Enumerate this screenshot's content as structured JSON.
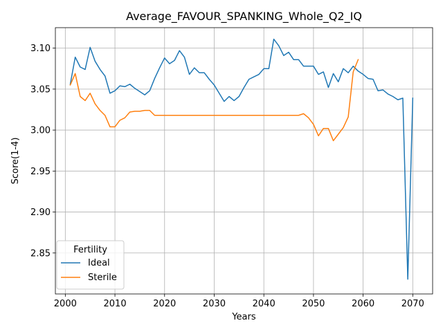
{
  "chart_data": {
    "type": "line",
    "title": "Average_FAVOUR_SPANKING_Whole_Q2_IQ",
    "xlabel": "Years",
    "ylabel": "Score(1-4)",
    "xlim": [
      1998,
      2074
    ],
    "ylim": [
      2.8,
      3.125
    ],
    "xticks": [
      2000,
      2010,
      2020,
      2030,
      2040,
      2050,
      2060,
      2070
    ],
    "yticks": [
      2.85,
      2.9,
      2.95,
      3.0,
      3.05,
      3.1
    ],
    "ytick_labels": [
      "2.85",
      "2.90",
      "2.95",
      "3.00",
      "3.05",
      "3.10"
    ],
    "grid": true,
    "legend": {
      "title": "Fertility",
      "position": "lower-left"
    },
    "series": [
      {
        "name": "Ideal",
        "color": "#1f77b4",
        "x": [
          2001,
          2002,
          2003,
          2004,
          2005,
          2006,
          2007,
          2008,
          2009,
          2010,
          2011,
          2012,
          2013,
          2014,
          2015,
          2016,
          2017,
          2018,
          2019,
          2020,
          2021,
          2022,
          2023,
          2024,
          2025,
          2026,
          2027,
          2028,
          2029,
          2030,
          2031,
          2032,
          2033,
          2034,
          2035,
          2036,
          2037,
          2038,
          2039,
          2040,
          2041,
          2042,
          2043,
          2044,
          2045,
          2046,
          2047,
          2048,
          2049,
          2050,
          2051,
          2052,
          2053,
          2054,
          2055,
          2056,
          2057,
          2058,
          2059,
          2060,
          2061,
          2062,
          2063,
          2064,
          2065,
          2066,
          2067,
          2068,
          2069,
          2070
        ],
        "y": [
          3.056,
          3.089,
          3.077,
          3.074,
          3.101,
          3.084,
          3.074,
          3.066,
          3.045,
          3.048,
          3.054,
          3.053,
          3.056,
          3.051,
          3.047,
          3.043,
          3.048,
          3.063,
          3.076,
          3.088,
          3.081,
          3.085,
          3.097,
          3.089,
          3.068,
          3.076,
          3.07,
          3.07,
          3.062,
          3.055,
          3.045,
          3.035,
          3.041,
          3.036,
          3.041,
          3.052,
          3.062,
          3.065,
          3.068,
          3.075,
          3.075,
          3.111,
          3.103,
          3.091,
          3.095,
          3.086,
          3.086,
          3.078,
          3.078,
          3.078,
          3.068,
          3.071,
          3.052,
          3.069,
          3.059,
          3.075,
          3.07,
          3.078,
          3.072,
          3.068,
          3.063,
          3.062,
          3.048,
          3.049,
          3.044,
          3.041,
          3.037,
          3.039,
          2.818,
          3.039
        ]
      },
      {
        "name": "Sterile",
        "color": "#ff7f0e",
        "x": [
          2001,
          2002,
          2003,
          2004,
          2005,
          2006,
          2007,
          2008,
          2009,
          2010,
          2011,
          2012,
          2013,
          2014,
          2015,
          2016,
          2017,
          2018,
          2019,
          2020,
          2021,
          2022,
          2023,
          2024,
          2025,
          2026,
          2027,
          2028,
          2029,
          2030,
          2031,
          2032,
          2033,
          2034,
          2035,
          2036,
          2037,
          2038,
          2039,
          2040,
          2041,
          2042,
          2043,
          2044,
          2045,
          2046,
          2047,
          2048,
          2049,
          2050,
          2051,
          2052,
          2053,
          2054,
          2055,
          2056,
          2057,
          2058,
          2059
        ],
        "y": [
          3.055,
          3.069,
          3.041,
          3.036,
          3.045,
          3.032,
          3.024,
          3.018,
          3.004,
          3.004,
          3.012,
          3.015,
          3.022,
          3.023,
          3.023,
          3.024,
          3.024,
          3.018,
          3.018,
          3.018,
          3.018,
          3.018,
          3.018,
          3.018,
          3.018,
          3.018,
          3.018,
          3.018,
          3.018,
          3.018,
          3.018,
          3.018,
          3.018,
          3.018,
          3.018,
          3.018,
          3.018,
          3.018,
          3.018,
          3.018,
          3.018,
          3.018,
          3.018,
          3.018,
          3.018,
          3.018,
          3.018,
          3.02,
          3.015,
          3.007,
          2.993,
          3.002,
          3.002,
          2.987,
          2.995,
          3.003,
          3.016,
          3.071,
          3.086
        ]
      }
    ]
  }
}
